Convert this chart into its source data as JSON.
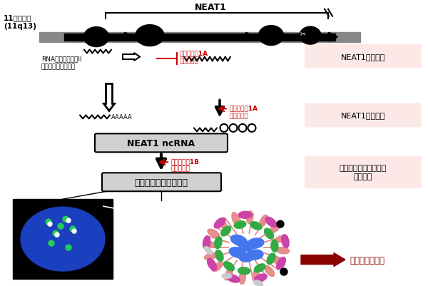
{
  "bg_color": "#ffffff",
  "label_chromosome": "11番染色体\n(11q13)",
  "label_neat1": "NEAT1",
  "label_rnapol": "RNAポリメラーゼII\n（転写をする酵素）",
  "label_cat1a_1": "カテゴリー1A\nタンパク質",
  "label_cat1a_2": "カテゴリー1A\nタンパク質",
  "label_cat1b": "カテゴリー1B\nタンパク質",
  "label_neat1_synthesis": "NEAT1の生合成",
  "label_neat1_stability": "NEAT1の安定化",
  "label_protein_assembly": "タンパク質会合による\n構造構築",
  "label_neat1_ncrna": "NEAT1 ncRNA",
  "label_paraspeckle": "パラスペックル構造体",
  "label_gene_regulation": "遺伝子発現制御",
  "label_aaaaa": "AAAAA",
  "pink_label_bg": "#fde8e8",
  "red_color": "#cc0000",
  "dark_red_arrow": "#8b0000",
  "neat1_box_color": "#d0d0d0"
}
